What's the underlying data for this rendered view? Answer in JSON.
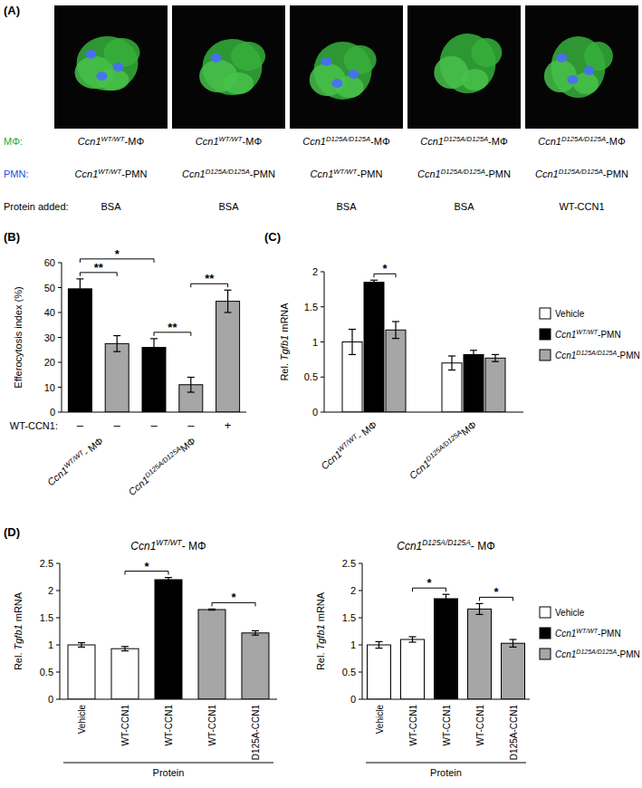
{
  "panel_a": {
    "panel": "(A)",
    "row_labels": [
      "MΦ:",
      "PMN:",
      "Protein added:"
    ],
    "columns": [
      {
        "macrophage": "Ccn1WT/WT-MΦ",
        "neutrophil": "Ccn1WT/WT-PMN",
        "protein": "BSA"
      },
      {
        "macrophage": "Ccn1WT/WT-MΦ",
        "neutrophil": "Ccn1D125A/D125A-PMN",
        "protein": "BSA"
      },
      {
        "macrophage": "Ccn1D125A/D125A-MΦ",
        "neutrophil": "Ccn1WT/WT-PMN",
        "protein": "BSA"
      },
      {
        "macrophage": "Ccn1D125A/D125A-MΦ",
        "neutrophil": "Ccn1D125A/D125A-PMN",
        "protein": "BSA"
      },
      {
        "macrophage": "Ccn1D125A/D125A-MΦ",
        "neutrophil": "Ccn1D125A/D125A-PMN",
        "protein": "WT-CCN1"
      }
    ]
  },
  "chart_data": [
    {
      "type": "bar",
      "panel": "(B)",
      "y_label": "Efferocytosis index (%)",
      "x_label": "WT-CCN1:",
      "categories": [
        "–",
        "–",
        "–",
        "–",
        "+"
      ],
      "values": [
        49.5,
        27.5,
        26,
        11,
        44.5
      ],
      "errors": [
        4,
        3.2,
        3.5,
        3,
        4.5
      ],
      "colors": [
        "#000000",
        "#a6a6a6",
        "#000000",
        "#a6a6a6",
        "#a6a6a6"
      ],
      "groups": [
        {
          "label": "Ccn1WT/WT- MΦ",
          "indices": [
            0,
            1
          ]
        },
        {
          "label": "Ccn1D125A/D125AMΦ",
          "indices": [
            2,
            3,
            4
          ]
        }
      ],
      "ylim": [
        0,
        60
      ],
      "yticks": [
        0,
        10,
        20,
        30,
        40,
        50,
        60
      ],
      "annotations": [
        {
          "text": "**",
          "from": 0,
          "to": 1
        },
        {
          "text": "*",
          "from": 0,
          "to": 2
        },
        {
          "text": "**",
          "from": 2,
          "to": 3
        },
        {
          "text": "**",
          "from": 3,
          "to": 4
        }
      ]
    },
    {
      "type": "bar",
      "panel": "(C)",
      "y_label": "Rel. Tgfb1 mRNA",
      "categories": [
        "Ccn1WT/WT- MΦ",
        "Ccn1D125A/D125AMΦ"
      ],
      "series": [
        {
          "name": "Vehicle",
          "color": "#ffffff",
          "values": [
            1,
            0.7
          ],
          "errors": [
            0.18,
            0.1
          ]
        },
        {
          "name": "Ccn1WT/WT-PMN",
          "color": "#000000",
          "values": [
            1.85,
            0.82
          ],
          "errors": [
            0.03,
            0.06
          ]
        },
        {
          "name": "Ccn1D125A/D125A-PMN",
          "color": "#a6a6a6",
          "values": [
            1.17,
            0.77
          ],
          "errors": [
            0.12,
            0.05
          ]
        }
      ],
      "ylim": [
        0,
        2
      ],
      "yticks": [
        0,
        0.5,
        1,
        1.5,
        2
      ],
      "legend": "right",
      "annotations": [
        {
          "text": "*",
          "from": {
            "category": 0,
            "series": 1
          },
          "to": {
            "category": 0,
            "series": 2
          }
        }
      ]
    },
    {
      "type": "bar",
      "panel": "(D)",
      "title": "Ccn1WT/WT- MΦ",
      "y_label": "Rel. Tgfb1 mRNA",
      "x_label": "Protein",
      "categories": [
        "Vehicle",
        "WT-CCN1",
        "WT-CCN1",
        "WT-CCN1",
        "D125A-CCN1"
      ],
      "series": [
        {
          "color": "#ffffff",
          "values": [
            1,
            0.93,
            null,
            null,
            null
          ],
          "errors": [
            0.04,
            0.04,
            null,
            null,
            null
          ]
        },
        {
          "color": "#000000",
          "values": [
            null,
            null,
            2.2,
            null,
            null
          ],
          "errors": [
            null,
            null,
            0.04,
            null,
            null
          ]
        },
        {
          "color": "#a6a6a6",
          "values": [
            null,
            null,
            null,
            1.65,
            1.22
          ],
          "errors": [
            null,
            null,
            null,
            0.01,
            0.04
          ]
        }
      ],
      "ylim": [
        0,
        2.5
      ],
      "yticks": [
        0,
        0.5,
        1,
        1.5,
        2,
        2.5
      ],
      "annotations": [
        {
          "text": "*",
          "from": 1,
          "to": 2
        },
        {
          "text": "*",
          "from": 3,
          "to": 4
        }
      ]
    },
    {
      "type": "bar",
      "title": "Ccn1D125A/D125A- MΦ",
      "y_label": "Rel. Tgfb1 mRNA",
      "x_label": "Protein",
      "categories": [
        "Vehicle",
        "WT-CCN1",
        "WT-CCN1",
        "WT-CCN1",
        "D125A-CCN1"
      ],
      "series": [
        {
          "name": "Vehicle",
          "color": "#ffffff",
          "values": [
            1,
            1.1,
            null,
            null,
            null
          ],
          "errors": [
            0.06,
            0.05,
            null,
            null,
            null
          ]
        },
        {
          "name": "Ccn1WT/WT-PMN",
          "color": "#000000",
          "values": [
            null,
            null,
            1.85,
            null,
            null
          ],
          "errors": [
            null,
            null,
            0.08,
            null,
            null
          ]
        },
        {
          "name": "Ccn1D125A/D125A-PMN",
          "color": "#a6a6a6",
          "values": [
            null,
            null,
            null,
            1.66,
            1.03
          ],
          "errors": [
            null,
            null,
            null,
            0.1,
            0.07
          ]
        }
      ],
      "ylim": [
        0,
        2.5
      ],
      "yticks": [
        0,
        0.5,
        1,
        1.5,
        2,
        2.5
      ],
      "legend": "right",
      "annotations": [
        {
          "text": "*",
          "from": 1,
          "to": 2
        },
        {
          "text": "*",
          "from": 3,
          "to": 4
        }
      ]
    }
  ]
}
